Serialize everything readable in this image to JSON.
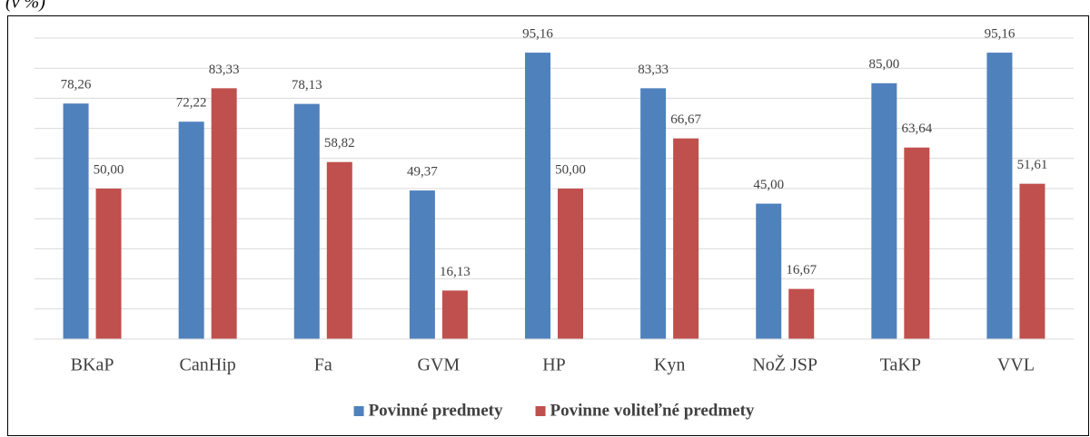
{
  "chart_data": {
    "type": "bar",
    "y_axis_label": "(v %)",
    "categories": [
      "BKaP",
      "CanHip",
      "Fa",
      "GVM",
      "HP",
      "Kyn",
      "NoŽ JSP",
      "TaKP",
      "VVL"
    ],
    "series": [
      {
        "name": "Povinné predmety",
        "color": "#4f81bd",
        "values": [
          78.26,
          72.22,
          78.13,
          49.37,
          95.16,
          83.33,
          45.0,
          85.0,
          95.16
        ],
        "value_labels": [
          "78,26",
          "72,22",
          "78,13",
          "49,37",
          "95,16",
          "83,33",
          "45,00",
          "85,00",
          "95,16"
        ]
      },
      {
        "name": "Povinne voliteľné predmety",
        "color": "#c0504d",
        "values": [
          50.0,
          83.33,
          58.82,
          16.13,
          50.0,
          66.67,
          16.67,
          63.64,
          51.61
        ],
        "value_labels": [
          "50,00",
          "83,33",
          "58,82",
          "16,13",
          "50,00",
          "66,67",
          "16,67",
          "63,64",
          "51,61"
        ]
      }
    ],
    "ylim": [
      0,
      100
    ],
    "yticks": [
      0,
      10,
      20,
      30,
      40,
      50,
      60,
      70,
      80,
      90,
      100
    ],
    "grid": true,
    "legend": "bottom"
  }
}
